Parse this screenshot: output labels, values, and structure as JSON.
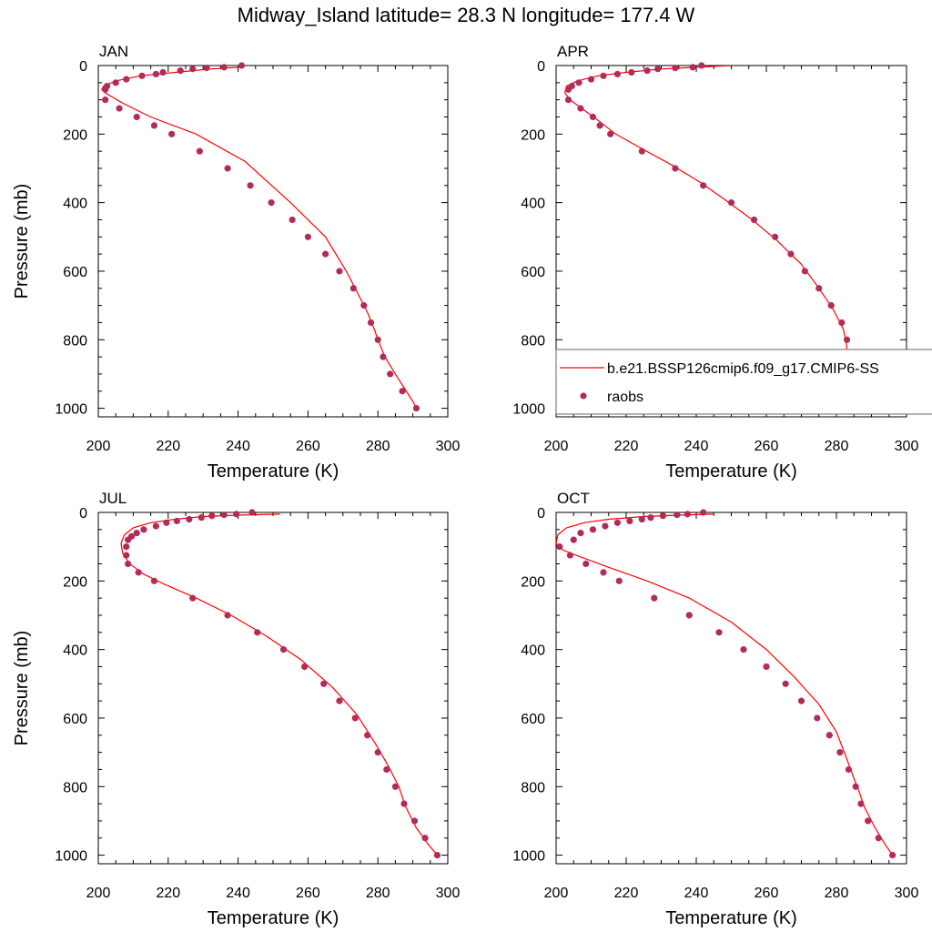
{
  "title": "Midway_Island  latitude= 28.3 N longitude= 177.4 W",
  "colors": {
    "model_line": "#ff0000",
    "obs_marker": "#b22c5a",
    "axis": "#000000"
  },
  "chart_data": [
    {
      "type": "line",
      "panel_label": "JAN",
      "xlabel": "Temperature (K)",
      "ylabel": "Pressure (mb)",
      "xlim": [
        200,
        300
      ],
      "ylim": [
        1025,
        0
      ],
      "xticks": [
        "200",
        "220",
        "240",
        "260",
        "280",
        "300"
      ],
      "yticks": [
        "0",
        "200",
        "400",
        "600",
        "800",
        "1000"
      ],
      "series": [
        {
          "kind": "line",
          "x": [
            240.5,
            232,
            222,
            212,
            205,
            201.5,
            201,
            202,
            207,
            215,
            228,
            242,
            255,
            265,
            271,
            275,
            277,
            279,
            280,
            282,
            285,
            287.5,
            290,
            291
          ],
          "y": [
            5,
            10,
            20,
            30,
            45,
            60,
            70,
            80,
            110,
            150,
            200,
            280,
            400,
            500,
            600,
            680,
            720,
            770,
            800,
            850,
            900,
            940,
            980,
            1000
          ]
        },
        {
          "name": "raobs",
          "kind": "scatter",
          "x": [
            241,
            236,
            231,
            227,
            223.5,
            218.5,
            216.5,
            212.5,
            208,
            205,
            202.5,
            202,
            202,
            206,
            211,
            216,
            221,
            229,
            237,
            243.5,
            249.5,
            255.5,
            260,
            265,
            269,
            273,
            276,
            278,
            280,
            281.5,
            283.5,
            287,
            291
          ],
          "y": [
            0,
            5,
            7,
            10,
            15,
            20,
            25,
            30,
            40,
            50,
            60,
            70,
            100,
            125,
            150,
            175,
            200,
            250,
            300,
            350,
            400,
            450,
            500,
            550,
            600,
            650,
            700,
            750,
            800,
            850,
            900,
            950,
            1000
          ]
        }
      ]
    },
    {
      "type": "line",
      "panel_label": "APR",
      "xlabel": "Temperature (K)",
      "ylabel": "",
      "xlim": [
        200,
        300
      ],
      "ylim": [
        1025,
        0
      ],
      "xticks": [
        "200",
        "220",
        "240",
        "260",
        "280",
        "300"
      ],
      "yticks": [
        "0",
        "200",
        "400",
        "600",
        "800",
        "1000"
      ],
      "legend": {
        "placement": "middle-right",
        "line_label": "b.e21.BSSP126cmip6.f09_g17.CMIP6-SS",
        "marker_label": "raobs"
      },
      "series": [
        {
          "kind": "line",
          "x": [
            250,
            240,
            230,
            220,
            212,
            206,
            203,
            202.5,
            204,
            208,
            212,
            217,
            224,
            233,
            241,
            248,
            256,
            263,
            270,
            275,
            279,
            282,
            283,
            282.5,
            284,
            286.5,
            289.5,
            291.5
          ],
          "y": [
            0,
            5,
            10,
            20,
            30,
            45,
            60,
            80,
            100,
            130,
            160,
            200,
            240,
            290,
            340,
            390,
            450,
            510,
            580,
            650,
            710,
            770,
            820,
            860,
            900,
            940,
            980,
            1000
          ]
        },
        {
          "name": "raobs",
          "kind": "scatter",
          "x": [
            241.5,
            239,
            234,
            229,
            226,
            221.5,
            217.5,
            213.5,
            210,
            206.5,
            204.5,
            203.5,
            203.5,
            207,
            210.5,
            212.5,
            215.5,
            224.5,
            234,
            242,
            250,
            256.5,
            262.5,
            267,
            271,
            275,
            278.5,
            281.5,
            283,
            283,
            285,
            287.5,
            291.5
          ],
          "y": [
            0,
            5,
            7,
            10,
            15,
            20,
            25,
            30,
            40,
            50,
            60,
            70,
            100,
            125,
            150,
            175,
            200,
            250,
            300,
            350,
            400,
            450,
            500,
            550,
            600,
            650,
            700,
            750,
            800,
            850,
            900,
            950,
            1000
          ]
        }
      ]
    },
    {
      "type": "line",
      "panel_label": "JUL",
      "xlabel": "Temperature (K)",
      "ylabel": "Pressure (mb)",
      "xlim": [
        200,
        300
      ],
      "ylim": [
        1025,
        0
      ],
      "xticks": [
        "200",
        "220",
        "240",
        "260",
        "280",
        "300"
      ],
      "yticks": [
        "0",
        "200",
        "400",
        "600",
        "800",
        "1000"
      ],
      "series": [
        {
          "kind": "line",
          "x": [
            252,
            240,
            230,
            222,
            215,
            210,
            207.5,
            206.5,
            207,
            209,
            213,
            219,
            228,
            238,
            248,
            258,
            267,
            274,
            279,
            283,
            285.5,
            286,
            288,
            291,
            294.5,
            297
          ],
          "y": [
            5,
            8,
            12,
            20,
            30,
            45,
            65,
            90,
            120,
            150,
            180,
            210,
            250,
            300,
            360,
            430,
            510,
            590,
            670,
            740,
            790,
            800,
            860,
            920,
            970,
            1000
          ]
        },
        {
          "name": "raobs",
          "kind": "scatter",
          "x": [
            244,
            239.5,
            236,
            232.5,
            229.5,
            226,
            222.5,
            219.5,
            216.5,
            213,
            211,
            209.5,
            208.5,
            208,
            208,
            208.5,
            211.5,
            216,
            227,
            237,
            245.5,
            253,
            259,
            264.5,
            269,
            273.5,
            277,
            280,
            282.5,
            285,
            287.5,
            290.5,
            293.5,
            297
          ],
          "y": [
            0,
            5,
            7,
            10,
            15,
            20,
            25,
            30,
            40,
            50,
            60,
            70,
            80,
            100,
            125,
            150,
            175,
            200,
            250,
            300,
            350,
            400,
            450,
            500,
            550,
            600,
            650,
            700,
            750,
            800,
            850,
            900,
            950,
            1000
          ]
        }
      ]
    },
    {
      "type": "line",
      "panel_label": "OCT",
      "xlabel": "Temperature (K)",
      "ylabel": "",
      "xlim": [
        200,
        300
      ],
      "ylim": [
        1025,
        0
      ],
      "xticks": [
        "200",
        "220",
        "240",
        "260",
        "280",
        "300"
      ],
      "yticks": [
        "0",
        "200",
        "400",
        "600",
        "800",
        "1000"
      ],
      "series": [
        {
          "kind": "line",
          "x": [
            245,
            235,
            225,
            215,
            208,
            203,
            200.5,
            200,
            202,
            207,
            215,
            226,
            238,
            250,
            260,
            268,
            275,
            280,
            283,
            285.5,
            286,
            288,
            291,
            294,
            296
          ],
          "y": [
            5,
            8,
            12,
            20,
            30,
            45,
            65,
            90,
            110,
            130,
            160,
            200,
            250,
            320,
            400,
            480,
            560,
            640,
            720,
            790,
            800,
            860,
            920,
            970,
            1000
          ]
        },
        {
          "name": "raobs",
          "kind": "scatter",
          "x": [
            242,
            237.5,
            234.5,
            230.5,
            227,
            224.5,
            221,
            217.5,
            214,
            210.5,
            207,
            205,
            201,
            204,
            208.5,
            213.5,
            218,
            228,
            238,
            246.5,
            253.5,
            260,
            265.5,
            270,
            274.5,
            278,
            281,
            283.5,
            285.5,
            287,
            289,
            292,
            296
          ],
          "y": [
            0,
            5,
            7,
            10,
            15,
            20,
            25,
            30,
            40,
            50,
            60,
            80,
            100,
            125,
            150,
            175,
            200,
            250,
            300,
            350,
            400,
            450,
            500,
            550,
            600,
            650,
            700,
            750,
            800,
            850,
            900,
            950,
            1000
          ]
        }
      ]
    }
  ]
}
